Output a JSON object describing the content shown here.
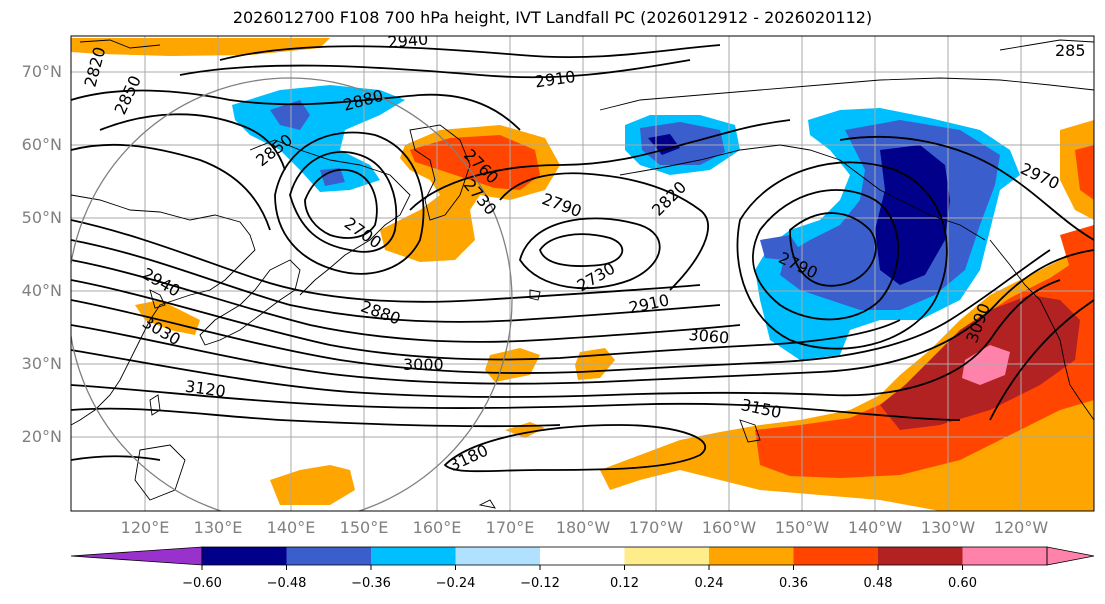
{
  "title": "2026012700 F108 700 hPa height, IVT Landfall PC (2026012912 - 2026020112)",
  "lat_labels": [
    "70°N",
    "60°N",
    "50°N",
    "40°N",
    "30°N",
    "20°N"
  ],
  "lon_labels": [
    "120°E",
    "130°E",
    "140°E",
    "150°E",
    "160°E",
    "170°E",
    "180°W",
    "170°W",
    "160°W",
    "150°W",
    "140°W",
    "130°W",
    "120°W"
  ],
  "contour_labels": [
    "2940",
    "2910",
    "2880",
    "2850",
    "2820",
    "2850",
    "2760",
    "2730",
    "2790",
    "2820",
    "2700",
    "2730",
    "2790",
    "2970",
    "2910",
    "2880",
    "3060",
    "3000",
    "2940",
    "3030",
    "3120",
    "3090",
    "3150",
    "3180",
    "285"
  ],
  "colorbar": {
    "ticks": [
      "−0.60",
      "−0.48",
      "−0.36",
      "−0.24",
      "−0.12",
      "0.12",
      "0.24",
      "0.36",
      "0.48",
      "0.60"
    ],
    "colors": [
      "#9932cc",
      "#00008b",
      "#3a5fcd",
      "#00bfff",
      "#b0e2ff",
      "#ffffff",
      "#ffec8b",
      "#ffa500",
      "#ff4500",
      "#b22222",
      "#ff82ab"
    ]
  }
}
